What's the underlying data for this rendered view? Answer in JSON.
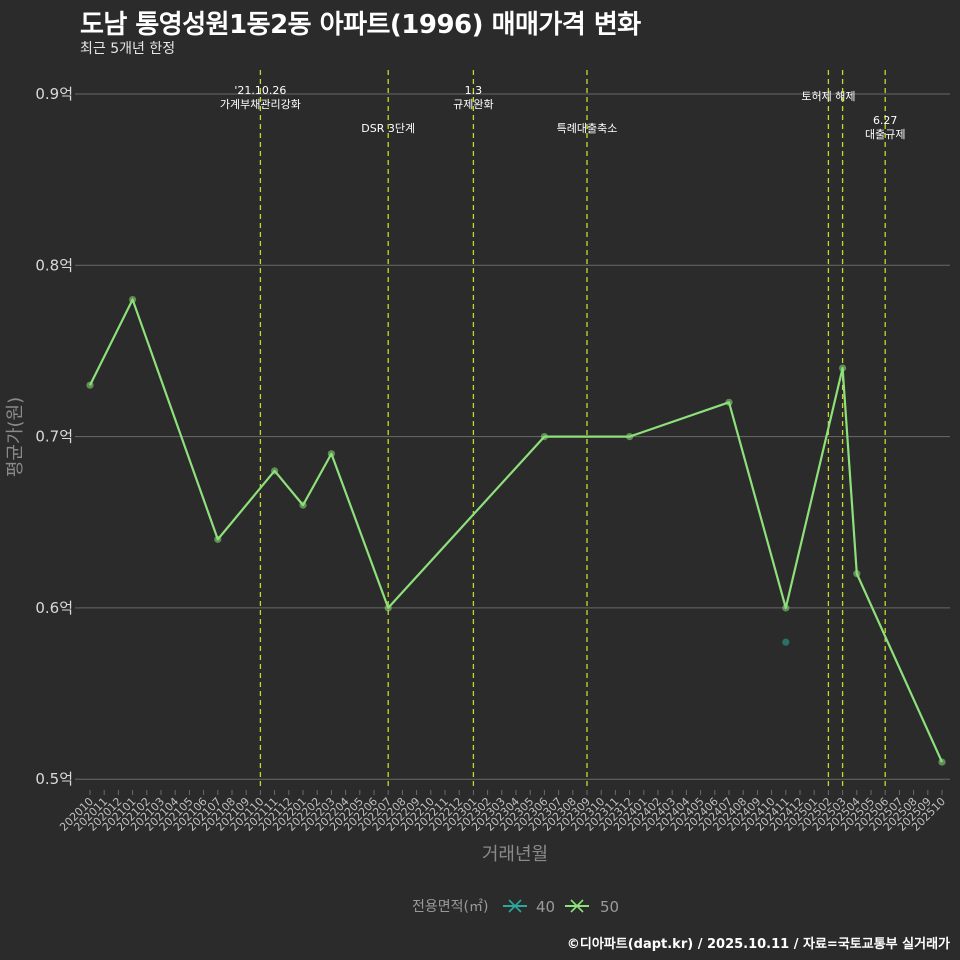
{
  "header": {
    "title": "도남 통영성원1동2동 아파트(1996) 매매가격 변화",
    "subtitle": "최근 5개년 한정"
  },
  "caption": "©디아파트(dapt.kr) / 2025.10.11 / 자료=국토교통부 실거래가",
  "colors": {
    "background": "#2b2b2b",
    "grid": "#6a6a6a",
    "series_40": "#2aa89a",
    "series_50": "#8de07a",
    "event_line": "#c8d82a"
  },
  "chart_data": {
    "type": "line",
    "title": "도남 통영성원1동2동 아파트(1996) 매매가격 변화",
    "subtitle": "최근 5개년 한정",
    "xlabel": "거래년월",
    "ylabel": "평균가(원)",
    "ylim": [
      0.5,
      0.9
    ],
    "yticks": [
      {
        "value": 0.5,
        "label": "0.5억"
      },
      {
        "value": 0.6,
        "label": "0.6억"
      },
      {
        "value": 0.7,
        "label": "0.7억"
      },
      {
        "value": 0.8,
        "label": "0.8억"
      },
      {
        "value": 0.9,
        "label": "0.9억"
      }
    ],
    "categories": [
      "202010",
      "202011",
      "202012",
      "202101",
      "202102",
      "202103",
      "202104",
      "202105",
      "202106",
      "202107",
      "202108",
      "202109",
      "202110",
      "202111",
      "202112",
      "202201",
      "202202",
      "202203",
      "202204",
      "202205",
      "202206",
      "202207",
      "202208",
      "202209",
      "202210",
      "202211",
      "202212",
      "202301",
      "202302",
      "202303",
      "202304",
      "202305",
      "202306",
      "202307",
      "202308",
      "202309",
      "202310",
      "202311",
      "202312",
      "202401",
      "202402",
      "202403",
      "202404",
      "202405",
      "202406",
      "202407",
      "202408",
      "202409",
      "202410",
      "202411",
      "202412",
      "202501",
      "202502",
      "202503",
      "202504",
      "202505",
      "202506",
      "202507",
      "202508",
      "202509",
      "202510"
    ],
    "series": [
      {
        "name": "40",
        "points": [
          {
            "x": "202411",
            "y": 0.58
          }
        ]
      },
      {
        "name": "50",
        "points": [
          {
            "x": "202010",
            "y": 0.73
          },
          {
            "x": "202101",
            "y": 0.78
          },
          {
            "x": "202107",
            "y": 0.64
          },
          {
            "x": "202111",
            "y": 0.68
          },
          {
            "x": "202201",
            "y": 0.66
          },
          {
            "x": "202203",
            "y": 0.69
          },
          {
            "x": "202207",
            "y": 0.6
          },
          {
            "x": "202306",
            "y": 0.7
          },
          {
            "x": "202312",
            "y": 0.7
          },
          {
            "x": "202407",
            "y": 0.72
          },
          {
            "x": "202411",
            "y": 0.6
          },
          {
            "x": "202503",
            "y": 0.74
          },
          {
            "x": "202504",
            "y": 0.62
          },
          {
            "x": "202510",
            "y": 0.51
          }
        ]
      }
    ],
    "events": [
      {
        "x": "202110",
        "lines": [
          "'21.10.26",
          "가계부채관리강화"
        ],
        "row": 0
      },
      {
        "x": "202207",
        "lines": [
          "DSR 3단계"
        ],
        "row": 2
      },
      {
        "x": "202301",
        "lines": [
          "1.3",
          "규제완화"
        ],
        "row": 0
      },
      {
        "x": "202309",
        "lines": [
          "특례대출축소"
        ],
        "row": 2
      },
      {
        "x": "202502",
        "lines": [
          "토허제 해제"
        ],
        "row": 1
      },
      {
        "x": "202503",
        "lines": [],
        "row": 1
      },
      {
        "x": "202506",
        "lines": [
          "6.27",
          "대출규제"
        ],
        "row": 3
      }
    ],
    "legend": {
      "title": "전용면적(㎡)",
      "position": "bottom",
      "items": [
        "40",
        "50"
      ]
    }
  }
}
